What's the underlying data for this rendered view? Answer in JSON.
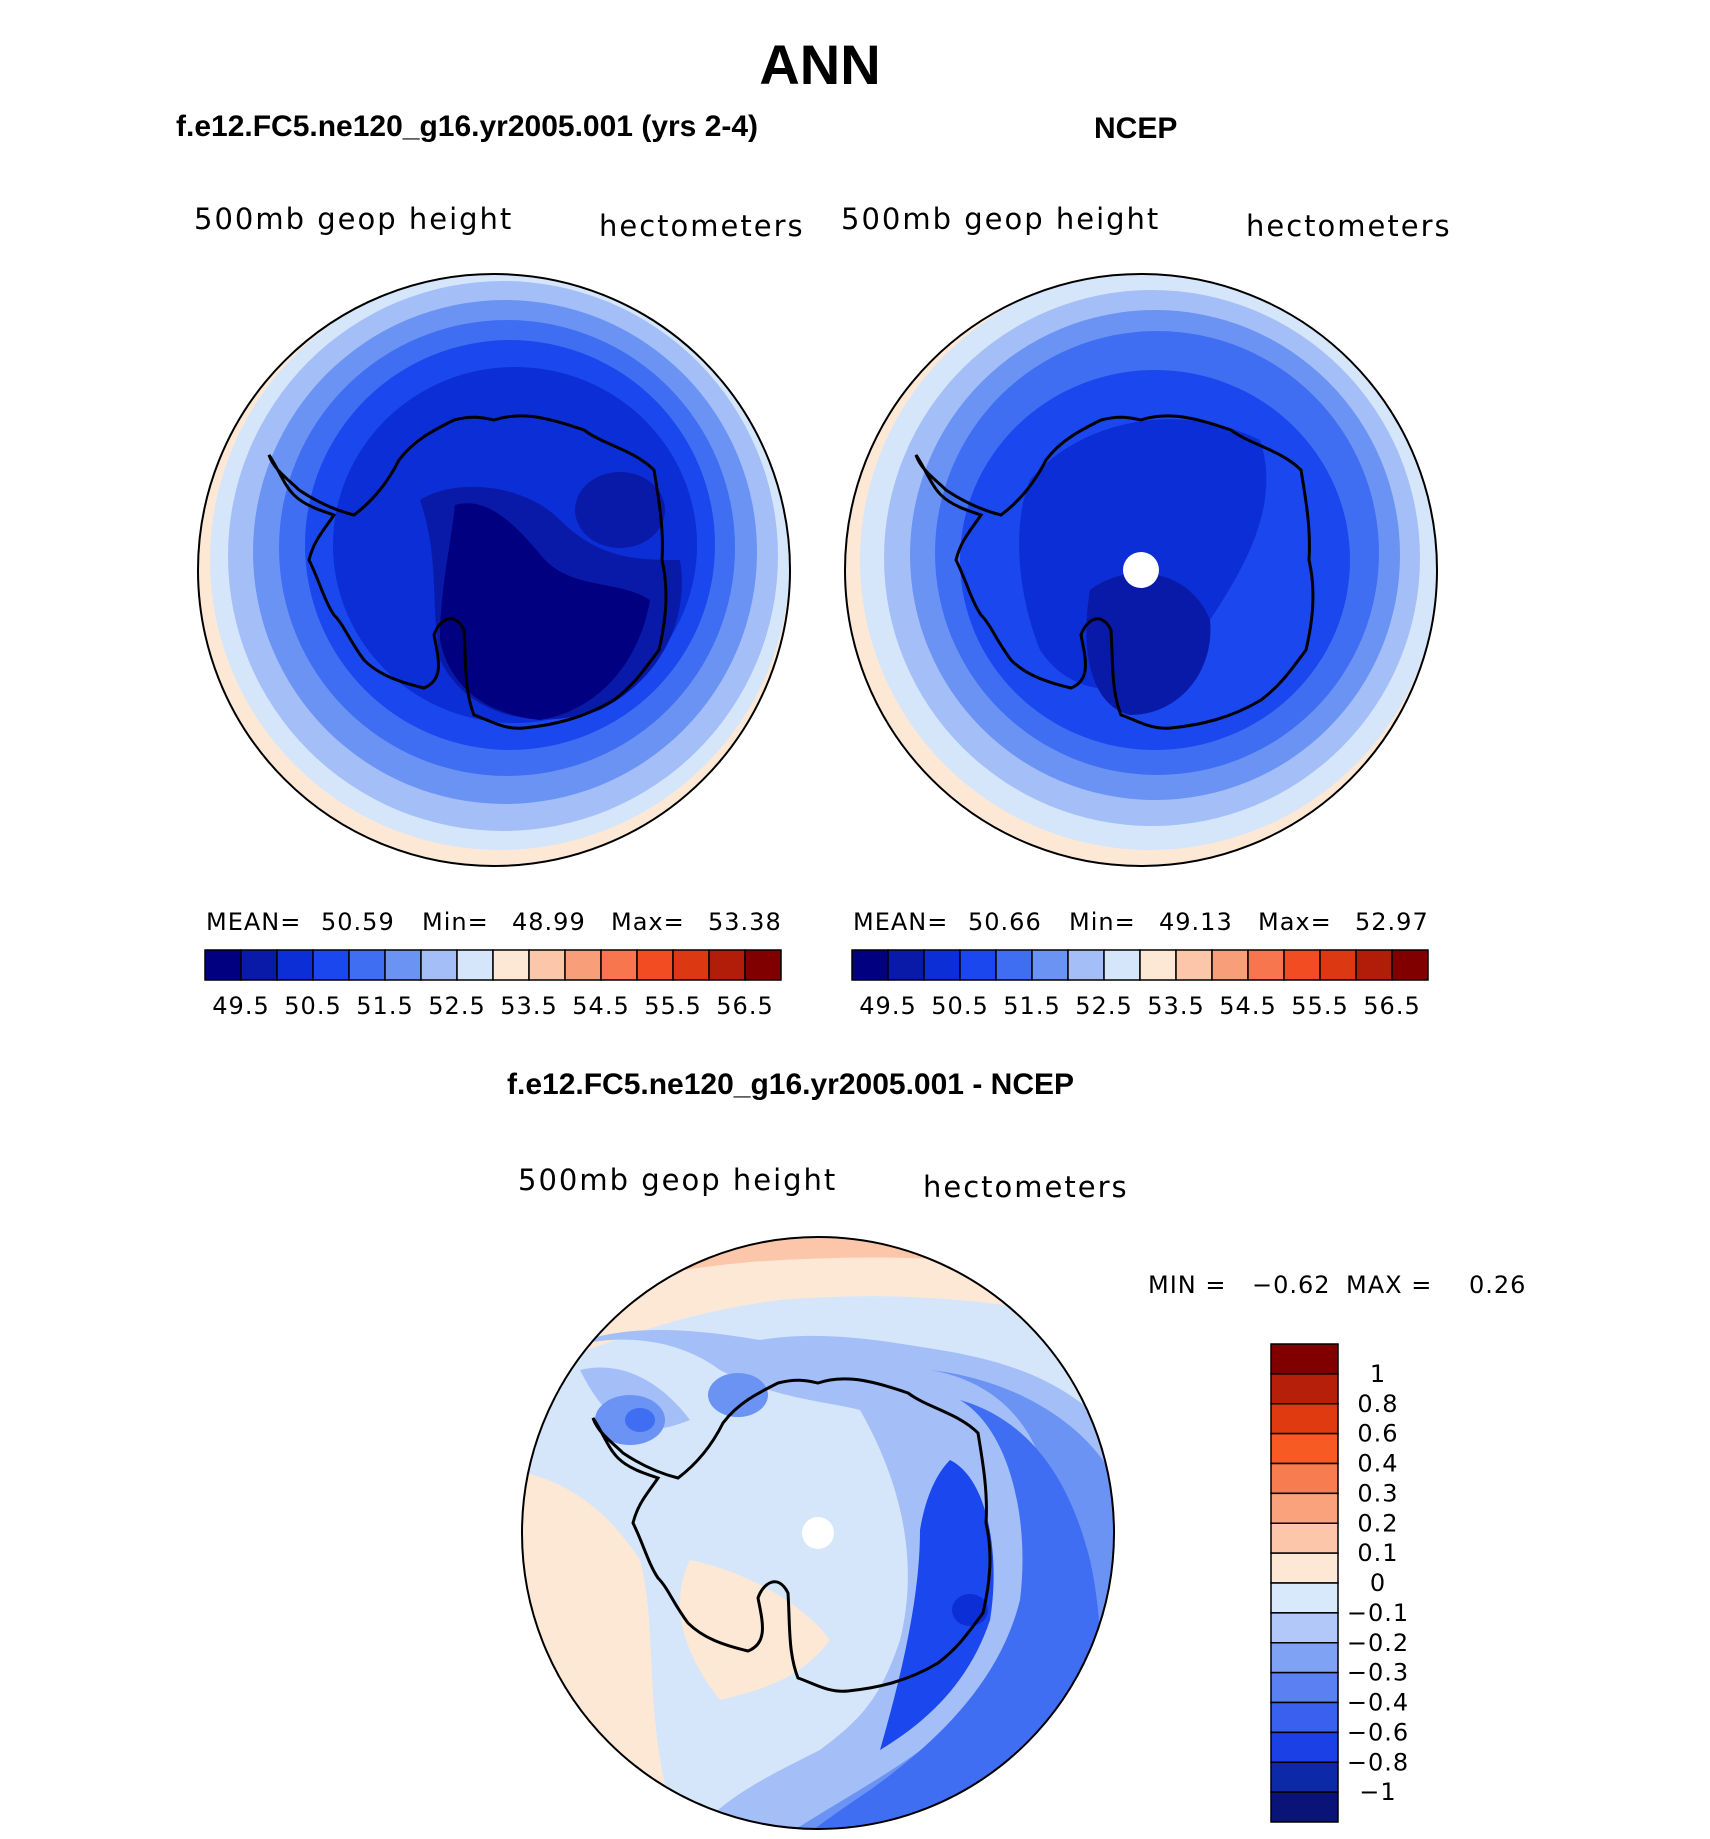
{
  "header": {
    "title": "ANN",
    "left_panel_title": "f.e12.FC5.ne120_g16.yr2005.001 (yrs 2-4)",
    "right_panel_title": "NCEP",
    "diff_panel_title": "f.e12.FC5.ne120_g16.yr2005.001 - NCEP"
  },
  "panels": {
    "left": {
      "variable": "500mb geop height",
      "units": "hectometers",
      "mean_label": "MEAN=",
      "mean": "50.59",
      "min_label": "Min=",
      "min": "48.99",
      "max_label": "Max=",
      "max": "53.38"
    },
    "right": {
      "variable": "500mb geop height",
      "units": "hectometers",
      "mean_label": "MEAN=",
      "mean": "50.66",
      "min_label": "Min=",
      "min": "49.13",
      "max_label": "Max=",
      "max": "52.97"
    },
    "diff": {
      "variable": "500mb geop height",
      "units": "hectometers",
      "min_label": "MIN =",
      "min": "−0.62",
      "max_label": "MAX =",
      "max": "0.26"
    }
  },
  "legend_abs": {
    "colors": [
      "#000080",
      "#0a1aa8",
      "#0c2ed6",
      "#1a47ee",
      "#3f6ef2",
      "#6a93f4",
      "#a4bef7",
      "#d5e6fb",
      "#fde8d6",
      "#fbc6aa",
      "#f89e78",
      "#f7764e",
      "#f24c22",
      "#dc3812",
      "#b21d0a",
      "#800000"
    ],
    "tick_labels": [
      "49.5",
      "50.5",
      "51.5",
      "52.5",
      "53.5",
      "54.5",
      "55.5",
      "56.5"
    ]
  },
  "legend_diff": {
    "colors": [
      "#0a1478",
      "#0c2aa8",
      "#1a40e6",
      "#3a60f0",
      "#5a80f2",
      "#80a2f5",
      "#b2c8f8",
      "#d9e9fc",
      "#fde8d6",
      "#fbc6aa",
      "#f9a27c",
      "#f77c50",
      "#f85a24",
      "#e03a10",
      "#b61f0a",
      "#800000"
    ],
    "tick_labels": [
      "1",
      "0.8",
      "0.6",
      "0.4",
      "0.3",
      "0.2",
      "0.1",
      "0",
      "−0.1",
      "−0.2",
      "−0.3",
      "−0.4",
      "−0.6",
      "−0.8",
      "−1"
    ]
  }
}
